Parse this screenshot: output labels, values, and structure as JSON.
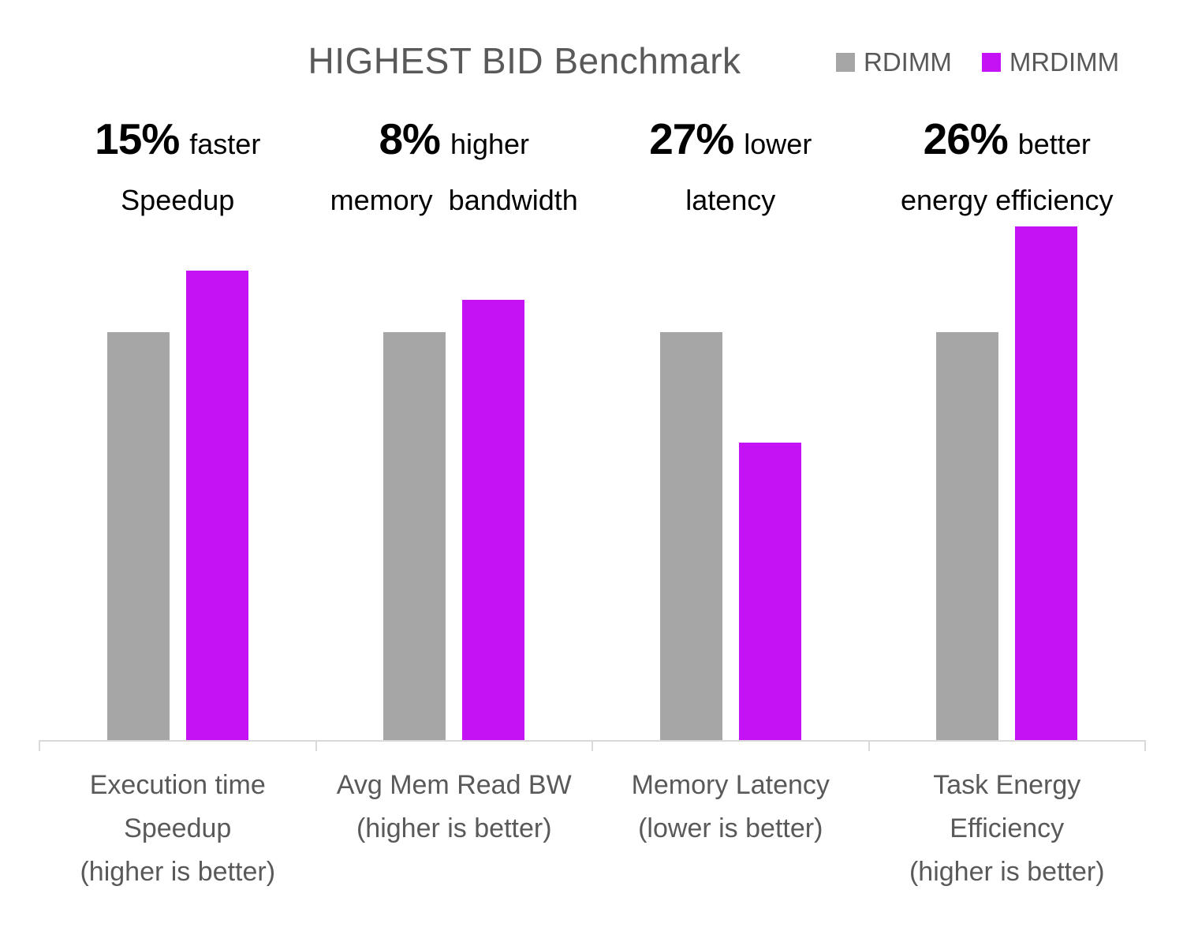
{
  "chart_data": {
    "type": "bar",
    "title": "HIGHEST BID Benchmark",
    "categories": [
      "Execution time\nSpeedup\n(higher is better)",
      "Avg Mem Read BW\n(higher is better)",
      "Memory Latency\n(lower is better)",
      "Task Energy\nEfficiency\n(higher is better)"
    ],
    "series": [
      {
        "name": "RDIMM",
        "color": "#a6a6a6",
        "values": [
          1.0,
          1.0,
          1.0,
          1.0
        ]
      },
      {
        "name": "MRDIMM",
        "color": "#c512f5",
        "values": [
          1.15,
          1.08,
          0.73,
          1.26
        ]
      }
    ],
    "annotations": [
      {
        "pct": "15%",
        "suffix": "faster",
        "line2": "Speedup"
      },
      {
        "pct": "8%",
        "suffix": "higher",
        "line2": "memory  bandwidth"
      },
      {
        "pct": "27%",
        "suffix": "lower",
        "line2": "latency"
      },
      {
        "pct": "26%",
        "suffix": "better",
        "line2": "energy efficiency"
      }
    ],
    "ylim": [
      0,
      1.3
    ],
    "value_axis_visible": false,
    "gridlines": false,
    "legend_position": "top-right",
    "colors": {
      "text_gray": "#595959",
      "axis_gray": "#d9d9d9",
      "annotation_black": "#000000"
    }
  }
}
